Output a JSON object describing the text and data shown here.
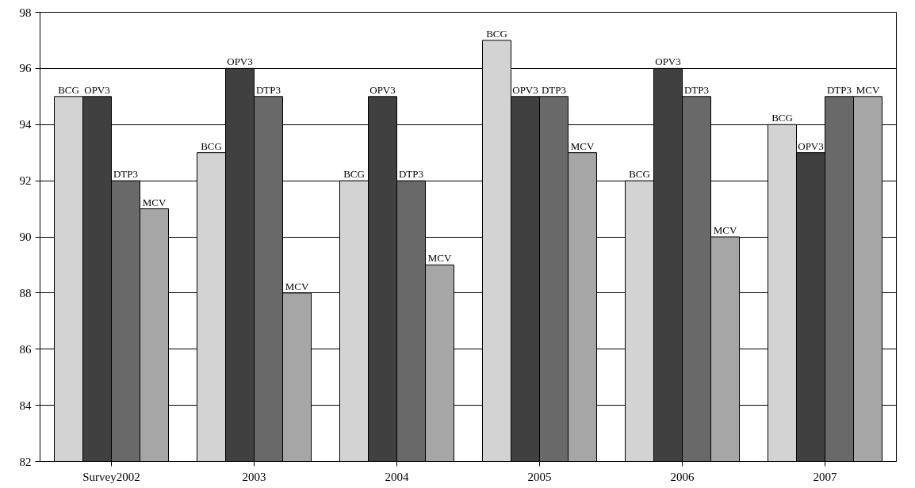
{
  "chart_data": {
    "type": "bar",
    "categories": [
      "Survey2002",
      "2003",
      "2004",
      "2005",
      "2006",
      "2007"
    ],
    "series": [
      {
        "name": "BCG",
        "color": "#d3d3d3",
        "values": [
          95,
          93,
          92,
          97,
          92,
          94
        ]
      },
      {
        "name": "OPV3",
        "color": "#404040",
        "values": [
          95,
          96,
          95,
          95,
          96,
          93
        ]
      },
      {
        "name": "DTP3",
        "color": "#696969",
        "values": [
          92,
          95,
          92,
          95,
          95,
          95
        ]
      },
      {
        "name": "MCV",
        "color": "#a6a6a6",
        "values": [
          91,
          88,
          89,
          93,
          90,
          95
        ]
      }
    ],
    "ylim": [
      82,
      98
    ],
    "yticks": [
      82,
      84,
      86,
      88,
      90,
      92,
      94,
      96,
      98
    ],
    "grid": "y"
  }
}
